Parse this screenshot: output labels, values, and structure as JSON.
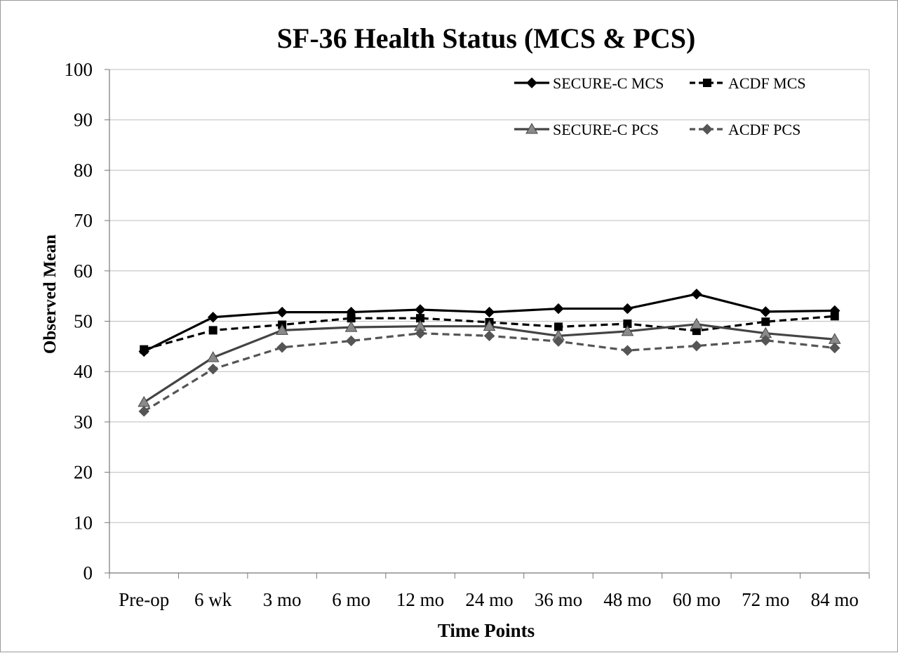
{
  "chart_data": {
    "type": "line",
    "title": "SF-36 Health Status (MCS & PCS)",
    "xlabel": "Time Points",
    "ylabel": "Observed Mean",
    "ylim": [
      0,
      100
    ],
    "yticks": [
      "0",
      "10",
      "20",
      "30",
      "40",
      "50",
      "60",
      "70",
      "80",
      "90",
      "100"
    ],
    "grid": true,
    "legend_position": "top-right",
    "categories": [
      "Pre-op",
      "6 wk",
      "3 mo",
      "6 mo",
      "12 mo",
      "24 mo",
      "36 mo",
      "48 mo",
      "60 mo",
      "72 mo",
      "84 mo"
    ],
    "series": [
      {
        "name": "SECURE-C MCS",
        "color": "#000000",
        "dash": "solid",
        "marker": "diamond",
        "values": [
          44.0,
          50.8,
          51.8,
          51.8,
          52.3,
          51.8,
          52.5,
          52.5,
          55.4,
          51.9,
          52.1
        ]
      },
      {
        "name": "ACDF MCS",
        "color": "#000000",
        "dash": "dashed",
        "marker": "square",
        "values": [
          44.4,
          48.2,
          49.3,
          50.6,
          50.6,
          49.8,
          48.9,
          49.5,
          48.1,
          49.9,
          51.0
        ]
      },
      {
        "name": "SECURE-C PCS",
        "color": "#444444",
        "dash": "solid",
        "marker": "triangle",
        "values": [
          33.9,
          42.8,
          48.2,
          48.8,
          49.0,
          49.0,
          47.1,
          48.0,
          49.4,
          47.6,
          46.4
        ]
      },
      {
        "name": "ACDF PCS",
        "color": "#555555",
        "dash": "dashed",
        "marker": "diamond",
        "values": [
          32.1,
          40.5,
          44.8,
          46.1,
          47.6,
          47.1,
          46.0,
          44.2,
          45.1,
          46.2,
          44.7
        ]
      }
    ]
  }
}
